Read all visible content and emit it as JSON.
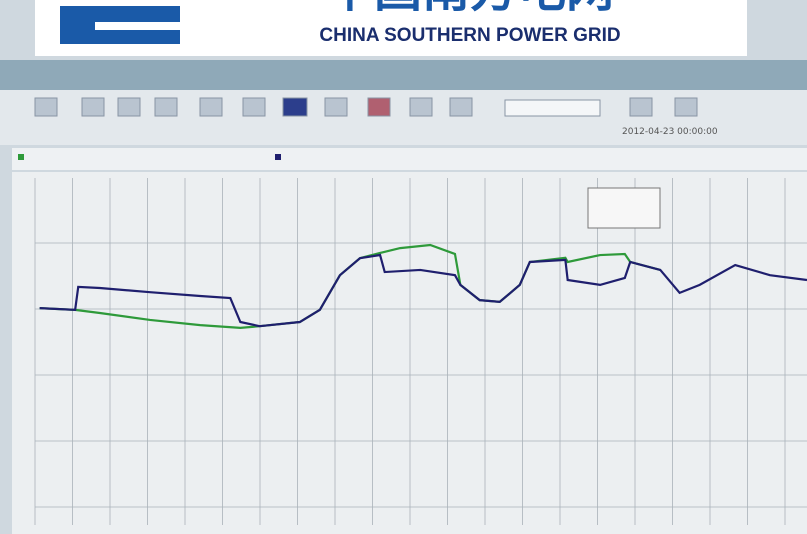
{
  "header": {
    "logo_text": "中国南方电网",
    "logo_subtitle": "CHINA SOUTHERN POWER GRID"
  },
  "toolbar": {
    "timestamp": "2012-04-23 00:00:00"
  },
  "chart_data": {
    "type": "line",
    "xlim": [
      0,
      100
    ],
    "ylim": [
      0,
      100
    ],
    "series": [
      {
        "color": "#2e9a3a",
        "x": [
          0.6,
          5.2,
          8.4,
          14.9,
          21.4,
          26.6,
          29.1,
          34.3,
          36.9,
          39.5,
          42.1,
          44.7,
          47.3,
          51.2,
          54.4,
          55.1,
          57.6,
          60.2,
          62.8,
          64.1,
          68.7,
          69.0,
          73.2,
          76.4,
          77.1,
          81.0
        ],
        "values": [
          62.5,
          62.0,
          61.1,
          59.1,
          57.6,
          56.8,
          57.3,
          58.5,
          62.0,
          72.0,
          76.9,
          78.4,
          79.8,
          80.7,
          78.1,
          69.2,
          64.8,
          64.3,
          69.2,
          75.8,
          77.0,
          75.8,
          77.8,
          78.1,
          75.8,
          73.5
        ]
      },
      {
        "color": "#1f1f6e",
        "x": [
          0.6,
          5.2,
          5.6,
          8.4,
          14.9,
          21.4,
          25.3,
          26.6,
          29.1,
          34.3,
          36.9,
          39.5,
          42.1,
          44.7,
          45.3,
          49.9,
          54.4,
          55.1,
          57.6,
          60.2,
          62.8,
          64.1,
          68.7,
          69.0,
          73.2,
          76.4,
          77.1,
          81.0,
          83.5,
          86.1,
          90.7,
          95.2,
          100
        ],
        "values": [
          62.5,
          62.0,
          68.6,
          68.3,
          67.1,
          66.0,
          65.4,
          58.5,
          57.3,
          58.5,
          62.0,
          72.0,
          76.9,
          77.8,
          72.9,
          73.5,
          72.0,
          69.2,
          64.8,
          64.3,
          69.2,
          75.8,
          76.4,
          70.6,
          69.2,
          71.2,
          75.8,
          73.5,
          66.9,
          69.2,
          74.9,
          72.0,
          70.6
        ]
      }
    ]
  }
}
